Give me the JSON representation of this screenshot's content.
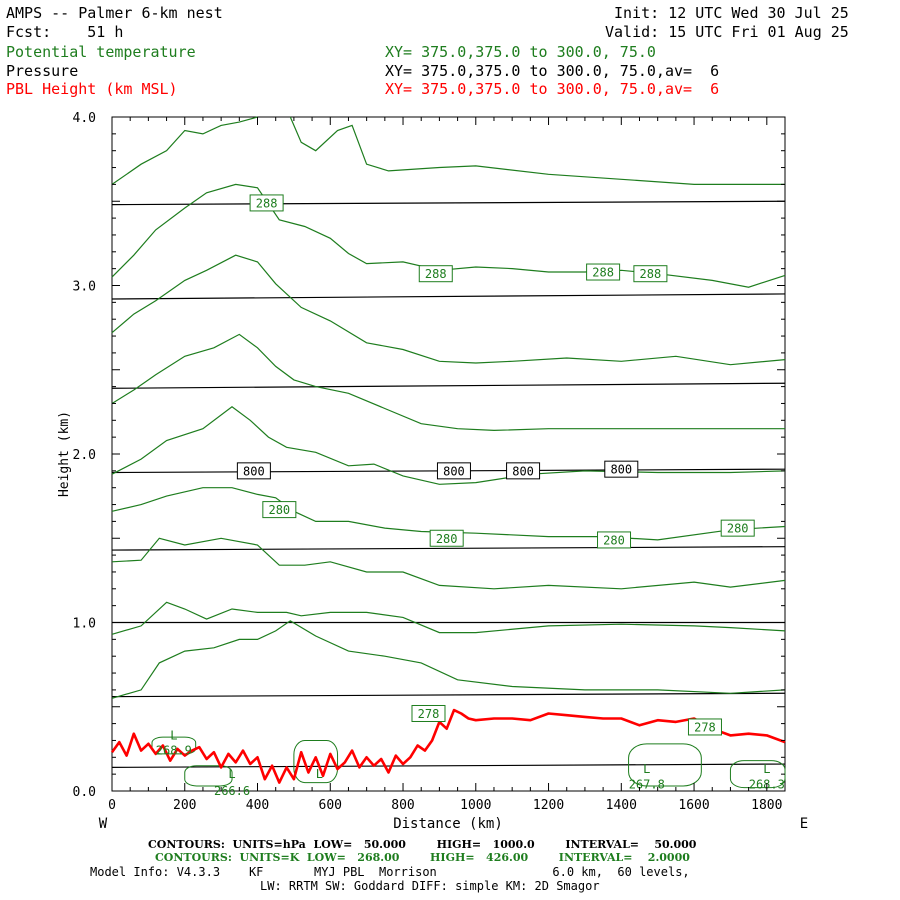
{
  "header": {
    "title": "AMPS -- Palmer 6-km nest",
    "forecast": "Fcst:    51 h",
    "init": "Init: 12 UTC Wed 30 Jul 25",
    "valid": "Valid: 15 UTC Fri 01 Aug 25",
    "fields": [
      {
        "name": "Potential temperature",
        "xy": "XY= 375.0,375.0 to 300.0, 75.0",
        "color": "#1e7d1e"
      },
      {
        "name": "Pressure",
        "xy": "XY= 375.0,375.0 to 300.0, 75.0,av=  6",
        "color": "#000000"
      },
      {
        "name": "PBL Height (km MSL)",
        "xy": "XY= 375.0,375.0 to 300.0, 75.0,av=  6",
        "color": "#ff0000"
      }
    ]
  },
  "footer": {
    "pressure_contours": "CONTOURS:  UNITS=hPa  LOW=   50.000        HIGH=   1000.0        INTERVAL=    50.000",
    "theta_contours": "CONTOURS:  UNITS=K  LOW=   268.00        HIGH=   426.00        INTERVAL=    2.0000",
    "model_info_1": "Model Info: V4.3.3    KF       MYJ PBL  Morrison                6.0 km,  60 levels,",
    "model_info_2": "LW: RRTM SW: Goddard DIFF: simple KM: 2D Smagor"
  },
  "chart_data": {
    "type": "line",
    "xlabel": "Distance (km)",
    "ylabel": "Height (km)",
    "xlim": [
      0,
      1850
    ],
    "ylim": [
      0,
      4.0
    ],
    "x_ticks": [
      0,
      200,
      400,
      600,
      800,
      1000,
      1200,
      1400,
      1600,
      1800
    ],
    "y_ticks": [
      "0.0",
      "1.0",
      "2.0",
      "3.0",
      "4.0"
    ],
    "left_end": "W",
    "right_end": "E",
    "pressure_lines": [
      {
        "y0": 0.14,
        "y1": 0.16
      },
      {
        "y0": 0.56,
        "y1": 0.58
      },
      {
        "y0": 1.0,
        "y1": 1.0
      },
      {
        "y0": 1.43,
        "y1": 1.45
      },
      {
        "y0": 1.89,
        "y1": 1.91
      },
      {
        "y0": 2.39,
        "y1": 2.42
      },
      {
        "y0": 2.92,
        "y1": 2.95
      },
      {
        "y0": 3.48,
        "y1": 3.5
      }
    ],
    "pressure_labels": [
      {
        "text": "800",
        "x": 390,
        "y": 1.9
      },
      {
        "text": "800",
        "x": 940,
        "y": 1.9
      },
      {
        "text": "800",
        "x": 1130,
        "y": 1.9
      },
      {
        "text": "800",
        "x": 1400,
        "y": 1.91
      }
    ],
    "theta_lines": [
      [
        [
          0,
          0.93
        ],
        [
          80,
          0.98
        ],
        [
          150,
          1.12
        ],
        [
          200,
          1.08
        ],
        [
          260,
          1.02
        ],
        [
          330,
          1.08
        ],
        [
          400,
          1.06
        ],
        [
          480,
          1.06
        ],
        [
          520,
          1.04
        ],
        [
          600,
          1.06
        ],
        [
          700,
          1.06
        ],
        [
          800,
          1.03
        ],
        [
          900,
          0.94
        ],
        [
          1000,
          0.94
        ],
        [
          1200,
          0.98
        ],
        [
          1400,
          0.99
        ],
        [
          1600,
          0.98
        ],
        [
          1700,
          0.97
        ],
        [
          1850,
          0.95
        ]
      ],
      [
        [
          0,
          0.55
        ],
        [
          80,
          0.6
        ],
        [
          130,
          0.76
        ],
        [
          200,
          0.83
        ],
        [
          280,
          0.85
        ],
        [
          350,
          0.9
        ],
        [
          400,
          0.9
        ],
        [
          450,
          0.95
        ],
        [
          490,
          1.01
        ],
        [
          560,
          0.92
        ],
        [
          650,
          0.83
        ],
        [
          750,
          0.8
        ],
        [
          850,
          0.76
        ],
        [
          950,
          0.66
        ],
        [
          1100,
          0.62
        ],
        [
          1300,
          0.6
        ],
        [
          1500,
          0.6
        ],
        [
          1700,
          0.58
        ],
        [
          1850,
          0.6
        ]
      ],
      [
        [
          0,
          1.36
        ],
        [
          80,
          1.37
        ],
        [
          130,
          1.5
        ],
        [
          200,
          1.46
        ],
        [
          300,
          1.5
        ],
        [
          400,
          1.46
        ],
        [
          460,
          1.34
        ],
        [
          530,
          1.34
        ],
        [
          600,
          1.36
        ],
        [
          700,
          1.3
        ],
        [
          800,
          1.3
        ],
        [
          900,
          1.22
        ],
        [
          1050,
          1.2
        ],
        [
          1200,
          1.22
        ],
        [
          1400,
          1.2
        ],
        [
          1600,
          1.24
        ],
        [
          1700,
          1.21
        ],
        [
          1850,
          1.25
        ]
      ],
      [
        [
          0,
          1.66
        ],
        [
          80,
          1.7
        ],
        [
          150,
          1.75
        ],
        [
          250,
          1.8
        ],
        [
          330,
          1.8
        ],
        [
          400,
          1.76
        ],
        [
          450,
          1.74
        ],
        [
          500,
          1.66
        ],
        [
          560,
          1.6
        ],
        [
          650,
          1.6
        ],
        [
          750,
          1.56
        ],
        [
          850,
          1.54
        ],
        [
          1000,
          1.53
        ],
        [
          1200,
          1.51
        ],
        [
          1350,
          1.51
        ],
        [
          1500,
          1.49
        ],
        [
          1700,
          1.55
        ],
        [
          1850,
          1.57
        ]
      ],
      [
        [
          0,
          1.88
        ],
        [
          80,
          1.97
        ],
        [
          150,
          2.08
        ],
        [
          250,
          2.15
        ],
        [
          330,
          2.28
        ],
        [
          380,
          2.2
        ],
        [
          430,
          2.1
        ],
        [
          480,
          2.04
        ],
        [
          560,
          2.01
        ],
        [
          650,
          1.93
        ],
        [
          720,
          1.94
        ],
        [
          800,
          1.87
        ],
        [
          900,
          1.82
        ],
        [
          1000,
          1.83
        ],
        [
          1150,
          1.88
        ],
        [
          1300,
          1.9
        ],
        [
          1500,
          1.89
        ],
        [
          1700,
          1.89
        ],
        [
          1850,
          1.9
        ]
      ],
      [
        [
          0,
          2.3
        ],
        [
          60,
          2.38
        ],
        [
          120,
          2.47
        ],
        [
          200,
          2.58
        ],
        [
          280,
          2.63
        ],
        [
          350,
          2.71
        ],
        [
          400,
          2.63
        ],
        [
          450,
          2.52
        ],
        [
          500,
          2.44
        ],
        [
          560,
          2.4
        ],
        [
          650,
          2.36
        ],
        [
          750,
          2.27
        ],
        [
          850,
          2.18
        ],
        [
          950,
          2.15
        ],
        [
          1050,
          2.14
        ],
        [
          1200,
          2.15
        ],
        [
          1400,
          2.15
        ],
        [
          1600,
          2.15
        ],
        [
          1850,
          2.15
        ]
      ],
      [
        [
          0,
          2.72
        ],
        [
          60,
          2.83
        ],
        [
          120,
          2.91
        ],
        [
          200,
          3.03
        ],
        [
          260,
          3.09
        ],
        [
          340,
          3.18
        ],
        [
          400,
          3.14
        ],
        [
          450,
          3.01
        ],
        [
          520,
          2.87
        ],
        [
          600,
          2.79
        ],
        [
          700,
          2.66
        ],
        [
          800,
          2.62
        ],
        [
          900,
          2.55
        ],
        [
          1000,
          2.54
        ],
        [
          1100,
          2.55
        ],
        [
          1250,
          2.57
        ],
        [
          1400,
          2.55
        ],
        [
          1550,
          2.58
        ],
        [
          1700,
          2.53
        ],
        [
          1850,
          2.56
        ]
      ],
      [
        [
          0,
          3.05
        ],
        [
          60,
          3.18
        ],
        [
          120,
          3.33
        ],
        [
          200,
          3.46
        ],
        [
          260,
          3.55
        ],
        [
          340,
          3.6
        ],
        [
          400,
          3.58
        ],
        [
          460,
          3.39
        ],
        [
          530,
          3.35
        ],
        [
          600,
          3.28
        ],
        [
          650,
          3.19
        ],
        [
          700,
          3.13
        ],
        [
          800,
          3.14
        ],
        [
          900,
          3.09
        ],
        [
          1000,
          3.11
        ],
        [
          1100,
          3.1
        ],
        [
          1200,
          3.08
        ],
        [
          1300,
          3.08
        ],
        [
          1400,
          3.09
        ],
        [
          1500,
          3.07
        ],
        [
          1650,
          3.03
        ],
        [
          1750,
          2.99
        ],
        [
          1850,
          3.06
        ]
      ],
      [
        [
          0,
          3.6
        ],
        [
          80,
          3.72
        ],
        [
          150,
          3.8
        ],
        [
          200,
          3.92
        ],
        [
          250,
          3.9
        ],
        [
          300,
          3.95
        ],
        [
          350,
          3.97
        ],
        [
          400,
          4.0
        ]
      ],
      [
        [
          490,
          4.0
        ],
        [
          520,
          3.85
        ],
        [
          560,
          3.8
        ],
        [
          620,
          3.92
        ],
        [
          660,
          3.95
        ],
        [
          700,
          3.72
        ],
        [
          760,
          3.68
        ],
        [
          900,
          3.7
        ],
        [
          1000,
          3.71
        ],
        [
          1200,
          3.66
        ],
        [
          1400,
          3.63
        ],
        [
          1600,
          3.6
        ],
        [
          1850,
          3.6
        ]
      ]
    ],
    "theta_labels": [
      {
        "text": "288",
        "x": 425,
        "y": 3.49
      },
      {
        "text": "288",
        "x": 890,
        "y": 3.07
      },
      {
        "text": "288",
        "x": 1350,
        "y": 3.08
      },
      {
        "text": "288",
        "x": 1480,
        "y": 3.07
      },
      {
        "text": "280",
        "x": 460,
        "y": 1.67
      },
      {
        "text": "280",
        "x": 920,
        "y": 1.5
      },
      {
        "text": "280",
        "x": 1380,
        "y": 1.49
      },
      {
        "text": "280",
        "x": 1720,
        "y": 1.56
      },
      {
        "text": "278",
        "x": 870,
        "y": 0.46
      },
      {
        "text": "278",
        "x": 1630,
        "y": 0.38
      }
    ],
    "low_labels": [
      {
        "text": "L",
        "x": 170,
        "y": 0.33
      },
      {
        "text": "268.9",
        "x": 170,
        "y": 0.24
      },
      {
        "text": "L",
        "x": 330,
        "y": 0.1
      },
      {
        "text": "266.6",
        "x": 330,
        "y": 0.0
      },
      {
        "text": "L",
        "x": 570,
        "y": 0.1
      },
      {
        "text": "L",
        "x": 1470,
        "y": 0.13
      },
      {
        "text": "267.8",
        "x": 1470,
        "y": 0.04
      },
      {
        "text": "L",
        "x": 1800,
        "y": 0.13
      },
      {
        "text": "268.3",
        "x": 1800,
        "y": 0.04
      }
    ],
    "pbl_series": {
      "name": "PBL Height (km MSL)",
      "x": [
        0,
        20,
        40,
        60,
        80,
        100,
        120,
        140,
        160,
        180,
        200,
        220,
        240,
        260,
        280,
        300,
        320,
        340,
        360,
        380,
        400,
        420,
        440,
        460,
        480,
        500,
        520,
        540,
        560,
        580,
        600,
        620,
        640,
        660,
        680,
        700,
        720,
        740,
        760,
        780,
        800,
        820,
        840,
        860,
        880,
        900,
        920,
        940,
        960,
        980,
        1000,
        1050,
        1100,
        1150,
        1200,
        1250,
        1300,
        1350,
        1400,
        1450,
        1500,
        1550,
        1600,
        1650,
        1700,
        1750,
        1800,
        1850
      ],
      "y": [
        0.23,
        0.29,
        0.21,
        0.34,
        0.24,
        0.28,
        0.22,
        0.27,
        0.18,
        0.25,
        0.21,
        0.24,
        0.26,
        0.19,
        0.23,
        0.14,
        0.22,
        0.17,
        0.24,
        0.16,
        0.2,
        0.07,
        0.15,
        0.05,
        0.14,
        0.07,
        0.23,
        0.11,
        0.2,
        0.09,
        0.22,
        0.13,
        0.17,
        0.24,
        0.14,
        0.2,
        0.15,
        0.19,
        0.11,
        0.21,
        0.16,
        0.2,
        0.27,
        0.24,
        0.3,
        0.41,
        0.37,
        0.48,
        0.46,
        0.43,
        0.42,
        0.43,
        0.43,
        0.42,
        0.46,
        0.45,
        0.44,
        0.43,
        0.43,
        0.39,
        0.42,
        0.41,
        0.43,
        0.37,
        0.33,
        0.34,
        0.33,
        0.29
      ],
      "color": "#ff0000"
    },
    "colors": {
      "theta": "#1e7d1e",
      "pressure": "#000000",
      "pbl": "#ff0000"
    }
  }
}
